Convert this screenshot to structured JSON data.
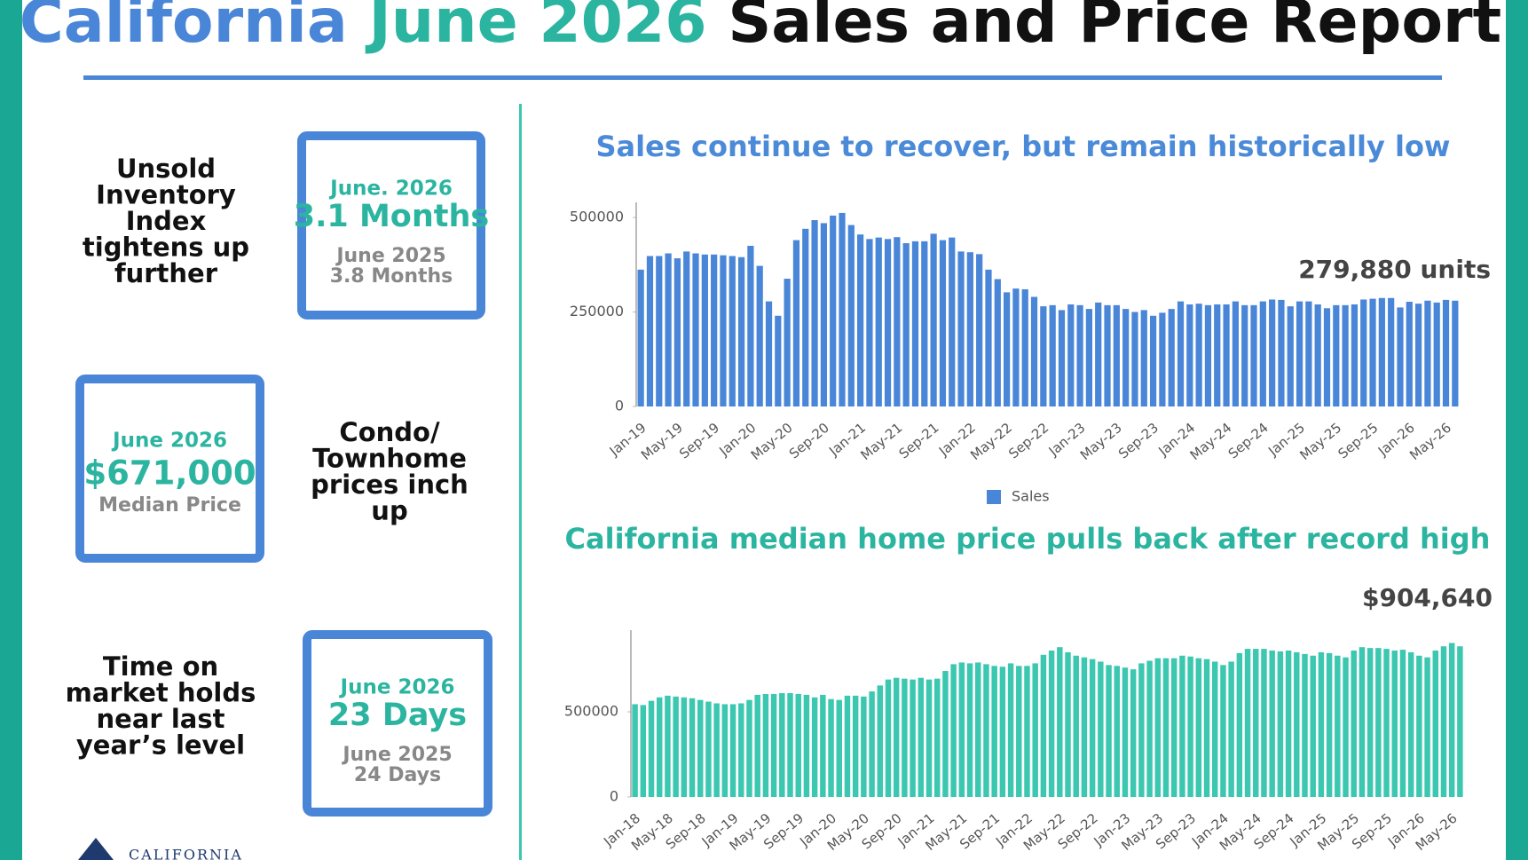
{
  "header": {
    "title_parts": [
      "California",
      "June 2026",
      "Sales and Price Report"
    ]
  },
  "panels": [
    {
      "caption": [
        "Unsold",
        "Inventory",
        "Index",
        "tightens up",
        "further"
      ],
      "box": {
        "heading": "June. 2026",
        "value": "3.1 Months",
        "compare": [
          "June 2025",
          "3.8 Months"
        ]
      }
    },
    {
      "caption": [
        "Condo/",
        "Townhome",
        "prices inch",
        "up"
      ],
      "box": {
        "heading": "June 2026",
        "value": "$671,000",
        "compare": [
          "Median Price"
        ]
      }
    },
    {
      "caption": [
        "Time on",
        "market holds",
        "near last",
        "year’s level"
      ],
      "box": {
        "heading": "June 2026",
        "value": "23 Days",
        "compare": [
          "June 2025",
          "24 Days"
        ]
      }
    }
  ],
  "chart_data": [
    {
      "type": "bar",
      "title": "Sales continue to recover, but remain historically low",
      "annotation": "279,880 units",
      "legend": "bottom",
      "categories": [
        "Jan-19",
        null,
        null,
        null,
        "May-19",
        null,
        null,
        null,
        "Sep-19",
        null,
        null,
        null,
        "Jan-20",
        null,
        null,
        null,
        "May-20",
        null,
        null,
        null,
        "Sep-20",
        null,
        null,
        null,
        "Jan-21",
        null,
        null,
        null,
        "May-21",
        null,
        null,
        null,
        "Sep-21",
        null,
        null,
        null,
        "Jan-22",
        null,
        null,
        null,
        "May-22",
        null,
        null,
        null,
        "Sep-22",
        null,
        null,
        null,
        "Jan-23",
        null,
        null,
        null,
        "May-23",
        null,
        null,
        null,
        "Sep-23",
        null,
        null,
        null,
        "Jan-24",
        null,
        null,
        null,
        "May-24",
        null,
        null,
        null,
        "Sep-24",
        null,
        null,
        null,
        "Jan-25",
        null,
        null,
        null,
        "May-25",
        null,
        null,
        null,
        "Sep-25",
        null,
        null,
        null,
        "Jan-26",
        null,
        null,
        null,
        "May-26",
        null
      ],
      "series": [
        {
          "name": "Sales",
          "color": "#4a86d8",
          "values": [
            362000,
            398000,
            398000,
            405000,
            392000,
            410000,
            405000,
            402000,
            402000,
            400000,
            398000,
            395000,
            425000,
            372000,
            278000,
            240000,
            338000,
            440000,
            470000,
            493000,
            485000,
            505000,
            512000,
            480000,
            455000,
            443000,
            447000,
            443000,
            448000,
            432000,
            437000,
            437000,
            457000,
            440000,
            447000,
            410000,
            408000,
            403000,
            362000,
            337000,
            302000,
            312000,
            310000,
            290000,
            265000,
            268000,
            255000,
            270000,
            268000,
            258000,
            275000,
            268000,
            268000,
            258000,
            250000,
            255000,
            240000,
            248000,
            258000,
            278000,
            270000,
            272000,
            268000,
            270000,
            270000,
            278000,
            268000,
            268000,
            278000,
            283000,
            282000,
            265000,
            278000,
            278000,
            270000,
            260000,
            268000,
            268000,
            270000,
            283000,
            285000,
            287000,
            287000,
            262000,
            277000,
            272000,
            280000,
            275000,
            282000,
            279880
          ]
        }
      ],
      "ylim": [
        0,
        540000
      ],
      "yticks": [
        0,
        250000,
        500000
      ]
    },
    {
      "type": "bar",
      "title": "California median home price pulls back after record high",
      "annotation": "$904,640",
      "color": "#3cc7b0",
      "categories": [
        "Jan-18",
        null,
        null,
        null,
        "May-18",
        null,
        null,
        null,
        "Sep-18",
        null,
        null,
        null,
        "Jan-19",
        null,
        null,
        null,
        "May-19",
        null,
        null,
        null,
        "Sep-19",
        null,
        null,
        null,
        "Jan-20",
        null,
        null,
        null,
        "May-20",
        null,
        null,
        null,
        "Sep-20",
        null,
        null,
        null,
        "Jan-21",
        null,
        null,
        null,
        "May-21",
        null,
        null,
        null,
        "Sep-21",
        null,
        null,
        null,
        "Jan-22",
        null,
        null,
        null,
        "May-22",
        null,
        null,
        null,
        "Sep-22",
        null,
        null,
        null,
        "Jan-23",
        null,
        null,
        null,
        "May-23",
        null,
        null,
        null,
        "Sep-23",
        null,
        null,
        null,
        "Jan-24",
        null,
        null,
        null,
        "May-24",
        null,
        null,
        null,
        "Sep-24",
        null,
        null,
        null,
        "Jan-25",
        null,
        null,
        null,
        "May-25",
        null,
        null,
        null,
        "Sep-25",
        null,
        null,
        null,
        "Jan-26",
        null,
        null,
        null,
        "May-26",
        null
      ],
      "values": [
        545000,
        540000,
        565000,
        585000,
        595000,
        590000,
        585000,
        580000,
        570000,
        560000,
        550000,
        545000,
        545000,
        550000,
        570000,
        600000,
        605000,
        605000,
        610000,
        610000,
        605000,
        600000,
        585000,
        600000,
        575000,
        570000,
        595000,
        595000,
        590000,
        620000,
        655000,
        690000,
        700000,
        695000,
        690000,
        700000,
        690000,
        695000,
        740000,
        780000,
        790000,
        785000,
        790000,
        780000,
        770000,
        765000,
        785000,
        770000,
        770000,
        785000,
        835000,
        860000,
        880000,
        850000,
        830000,
        820000,
        810000,
        795000,
        775000,
        770000,
        760000,
        750000,
        785000,
        800000,
        815000,
        815000,
        815000,
        830000,
        825000,
        815000,
        810000,
        795000,
        775000,
        795000,
        845000,
        870000,
        870000,
        870000,
        860000,
        855000,
        860000,
        850000,
        840000,
        830000,
        850000,
        845000,
        830000,
        820000,
        860000,
        880000,
        875000,
        875000,
        870000,
        860000,
        865000,
        850000,
        830000,
        820000,
        860000,
        885000,
        904640,
        885000
      ],
      "ylim": [
        0,
        980000
      ],
      "yticks": [
        0,
        500000
      ]
    }
  ],
  "footer": {
    "logo": "CALIFORNIA"
  }
}
